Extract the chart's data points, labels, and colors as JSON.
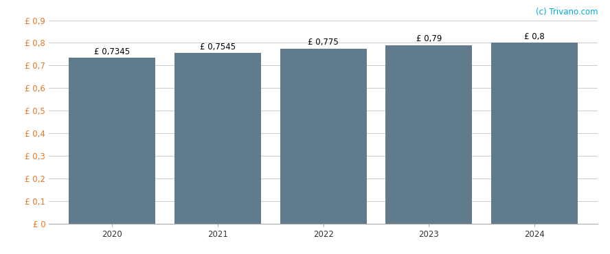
{
  "categories": [
    2020,
    2021,
    2022,
    2023,
    2024
  ],
  "values": [
    0.7345,
    0.7545,
    0.775,
    0.79,
    0.8
  ],
  "labels": [
    "£ 0,7345",
    "£ 0,7545",
    "£ 0,775",
    "£ 0,79",
    "£ 0,8"
  ],
  "bar_color": "#607b8b",
  "background_color": "#ffffff",
  "ylim": [
    0,
    0.9
  ],
  "ytick_values": [
    0.0,
    0.1,
    0.2,
    0.3,
    0.4,
    0.5,
    0.6,
    0.7,
    0.8,
    0.9
  ],
  "ytick_labels": [
    "£ 0",
    "£ 0,1",
    "£ 0,2",
    "£ 0,3",
    "£ 0,4",
    "£ 0,5",
    "£ 0,6",
    "£ 0,7",
    "£ 0,8",
    "£ 0,9"
  ],
  "grid_color": "#cccccc",
  "watermark": "(c) Trivano.com",
  "watermark_color": "#00aadd",
  "bar_width": 0.82,
  "label_fontsize": 8.5,
  "tick_fontsize": 8.5,
  "ytick_color": "#e87722",
  "xtick_color": "#333333",
  "watermark_fontsize": 8.5
}
